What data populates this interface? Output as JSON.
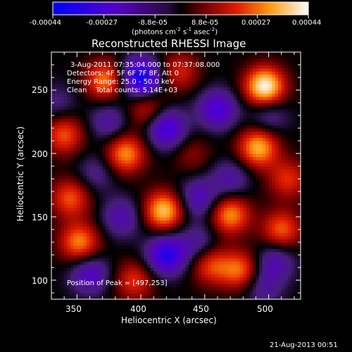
{
  "chart_data": {
    "type": "heatmap",
    "title": "Reconstructed RHESSI Image",
    "xlabel": "Heliocentric X (arcsec)",
    "ylabel": "Heliocentric Y (arcsec)",
    "xlim": [
      330,
      525
    ],
    "ylim": [
      85,
      280
    ],
    "xticks": [
      "350",
      "400",
      "450",
      "500"
    ],
    "yticks": [
      "100",
      "150",
      "200",
      "250"
    ],
    "colorbar": {
      "ticks": [
        "-0.00044",
        "-0.00027",
        "-8.8e-05",
        "8.8e-05",
        "0.00027",
        "0.00044"
      ],
      "units_main": "(photons cm",
      "units_sup1": "-2",
      "units_mid": " s",
      "units_sup2": "-1",
      "units_end": " asec",
      "units_sup3": "-2",
      "units_close": ")",
      "range": [
        -0.00044,
        0.00044
      ]
    },
    "annotations": {
      "time": "3-Aug-2011 07:35:04.000 to 07:37:08.000",
      "detectors": "Detectors: 4F 5F 6F 7F 8F, Att 0",
      "energy": "Energy Range: 25.0 - 50.0 keV",
      "clean": "Clean    Total counts: 5.14E+03",
      "peak": "Position of Peak = [497,253]"
    },
    "peaks": [
      {
        "x": 497,
        "y": 253,
        "value": 0.00044
      },
      {
        "x": 418,
        "y": 155,
        "value": 0.00036
      },
      {
        "x": 492,
        "y": 205,
        "value": 0.00034
      },
      {
        "x": 388,
        "y": 200,
        "value": 0.0003
      },
      {
        "x": 352,
        "y": 130,
        "value": 0.00029
      },
      {
        "x": 372,
        "y": 258,
        "value": 0.00028
      },
      {
        "x": 470,
        "y": 152,
        "value": 0.0003
      },
      {
        "x": 478,
        "y": 108,
        "value": 0.00026
      },
      {
        "x": 345,
        "y": 165,
        "value": 0.00024
      },
      {
        "x": 510,
        "y": 140,
        "value": 0.00025
      },
      {
        "x": 455,
        "y": 112,
        "value": 0.00022
      },
      {
        "x": 430,
        "y": 265,
        "value": 0.00018
      },
      {
        "x": 515,
        "y": 180,
        "value": 0.0002
      },
      {
        "x": 395,
        "y": 100,
        "value": 0.0002
      },
      {
        "x": 340,
        "y": 215,
        "value": 0.00024
      },
      {
        "x": 405,
        "y": 235,
        "value": 0.00018
      },
      {
        "x": 440,
        "y": 200,
        "value": 0.0001
      },
      {
        "x": 365,
        "y": 185,
        "value": -0.00012
      },
      {
        "x": 400,
        "y": 260,
        "value": -0.0004
      },
      {
        "x": 420,
        "y": 220,
        "value": -0.0003
      },
      {
        "x": 460,
        "y": 235,
        "value": -0.00026
      },
      {
        "x": 420,
        "y": 120,
        "value": -0.00034
      },
      {
        "x": 360,
        "y": 105,
        "value": -0.00022
      },
      {
        "x": 445,
        "y": 165,
        "value": -0.0002
      },
      {
        "x": 505,
        "y": 115,
        "value": -0.00018
      },
      {
        "x": 385,
        "y": 150,
        "value": -0.00018
      },
      {
        "x": 470,
        "y": 180,
        "value": -0.00016
      },
      {
        "x": 500,
        "y": 230,
        "value": -0.00014
      },
      {
        "x": 445,
        "y": 130,
        "value": -0.00014
      },
      {
        "x": 375,
        "y": 225,
        "value": -0.00016
      },
      {
        "x": 495,
        "y": 95,
        "value": -0.00014
      },
      {
        "x": 335,
        "y": 240,
        "value": -0.0001
      }
    ]
  },
  "footer": {
    "timestamp": "21-Aug-2013 00:51"
  }
}
